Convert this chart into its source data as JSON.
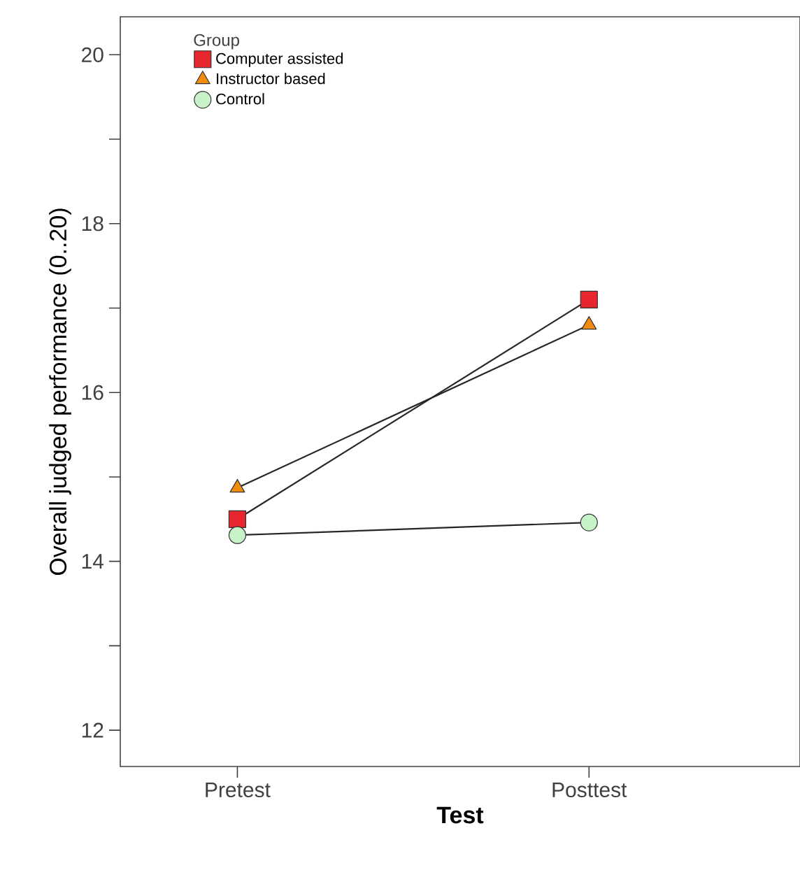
{
  "chart_data": {
    "type": "line",
    "xlabel": "Test",
    "ylabel": "Overall judged performance (0..20)",
    "legend_title": "Group",
    "legend": "top left",
    "categories": [
      "Pretest",
      "Posttest"
    ],
    "ylim": [
      11.57,
      20.45
    ],
    "yticks": [
      12,
      {
        "value": 13,
        "label": null
      },
      14,
      {
        "value": 15,
        "label": null
      },
      16,
      {
        "value": 17,
        "label": null
      },
      18,
      {
        "value": 19,
        "label": null
      },
      20
    ],
    "series": [
      {
        "name": "Computer assisted",
        "color": "#e8262d",
        "marker": "square",
        "values": [
          14.5,
          17.1
        ]
      },
      {
        "name": "Instructor based",
        "color": "#f28b0c",
        "marker": "triangle",
        "values": [
          14.87,
          16.8
        ]
      },
      {
        "name": "Control",
        "color": "#c8f2c8",
        "marker": "circle",
        "values": [
          14.31,
          14.46
        ]
      }
    ]
  }
}
